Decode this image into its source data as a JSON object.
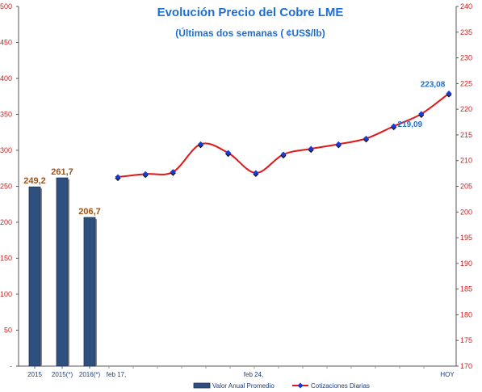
{
  "chart_data": {
    "type": "bar+line",
    "title": "Evolución Precio del Cobre LME",
    "subtitle": "(Últimas dos semanas ( ¢US$/lb)",
    "bars": {
      "name": "Valor Anual Promedio",
      "categories": [
        "2015",
        "2015(*)",
        "2016(*)"
      ],
      "values": [
        249.2,
        261.7,
        206.7
      ],
      "labels": [
        "249,2",
        "261,7",
        "206,7"
      ],
      "color": "#2f4f7f"
    },
    "line": {
      "name": "Cotizaciones Diarias",
      "values": [
        206.8,
        207.4,
        207.8,
        213.2,
        211.5,
        207.6,
        211.2,
        212.3,
        213.2,
        214.3,
        216.7,
        219.09,
        223.08
      ],
      "point_labels": [
        {
          "index": 11,
          "text": "219,09"
        },
        {
          "index": 12,
          "text": "223,08"
        }
      ],
      "color": "#e01818",
      "marker_color": "#1a3ad6"
    },
    "x_labels": [
      "feb 17,",
      "feb 24,",
      "HOY"
    ],
    "left_axis": {
      "min": 0,
      "max": 500,
      "step": 50,
      "bottom_label": "-"
    },
    "right_axis": {
      "min": 170,
      "max": 240,
      "step": 5
    },
    "left_axis_color": "#c81e1e",
    "right_axis_color": "#c81e1e"
  }
}
